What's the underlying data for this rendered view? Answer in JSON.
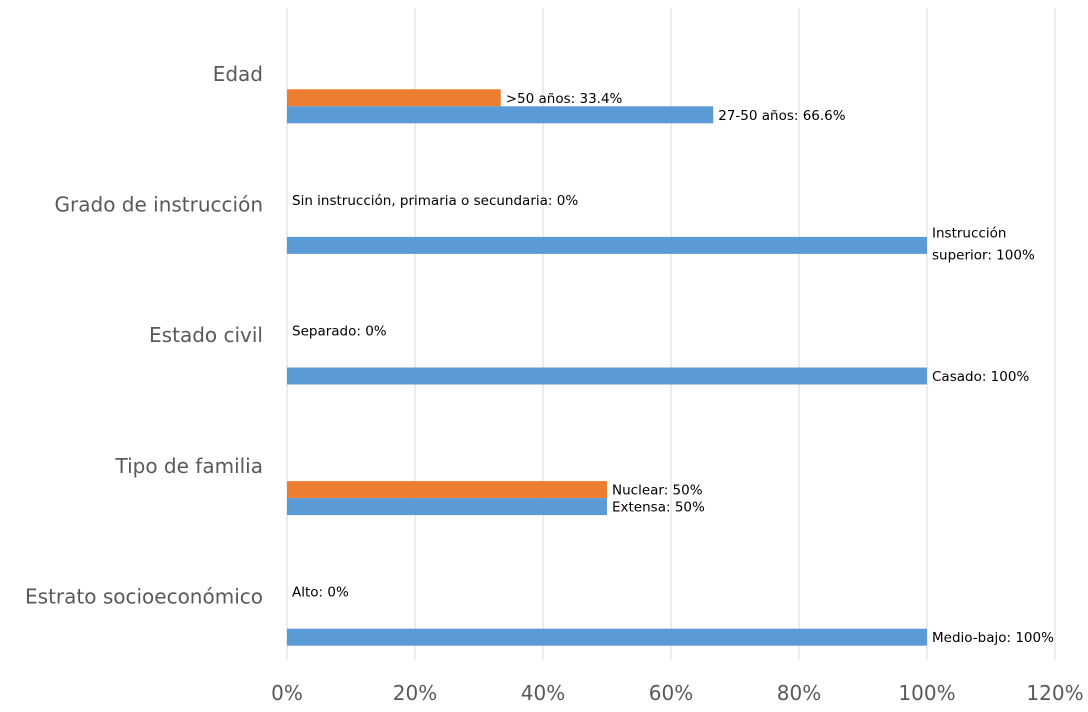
{
  "chart_data": {
    "type": "bar",
    "orientation": "horizontal",
    "xlim": [
      0,
      120
    ],
    "x_ticks": [
      "0%",
      "20%",
      "40%",
      "60%",
      "80%",
      "100%",
      "120%"
    ],
    "grid": true,
    "legend": "none",
    "categories": [
      "Edad",
      "Grado de instrucción",
      "Estado civil",
      "Tipo de familia",
      "Estrato socioeconómico"
    ],
    "series": [
      {
        "color": "#ed7d31",
        "values": [
          33.4,
          0,
          0,
          50,
          0
        ],
        "labels": [
          [
            ">50 años: 33.4%"
          ],
          [
            "Sin instrucción, primaria o secundaria: 0%"
          ],
          [
            "Separado: 0%"
          ],
          [
            "Nuclear: 50%"
          ],
          [
            "Alto: 0%"
          ]
        ]
      },
      {
        "color": "#5b9bd5",
        "values": [
          66.6,
          100,
          100,
          50,
          100
        ],
        "labels": [
          [
            "27-50 años: 66.6%"
          ],
          [
            "Instrucción",
            "superior: 100%"
          ],
          [
            "Casado: 100%"
          ],
          [
            "Extensa: 50%"
          ],
          [
            "Medio-bajo: 100%"
          ]
        ]
      }
    ]
  }
}
